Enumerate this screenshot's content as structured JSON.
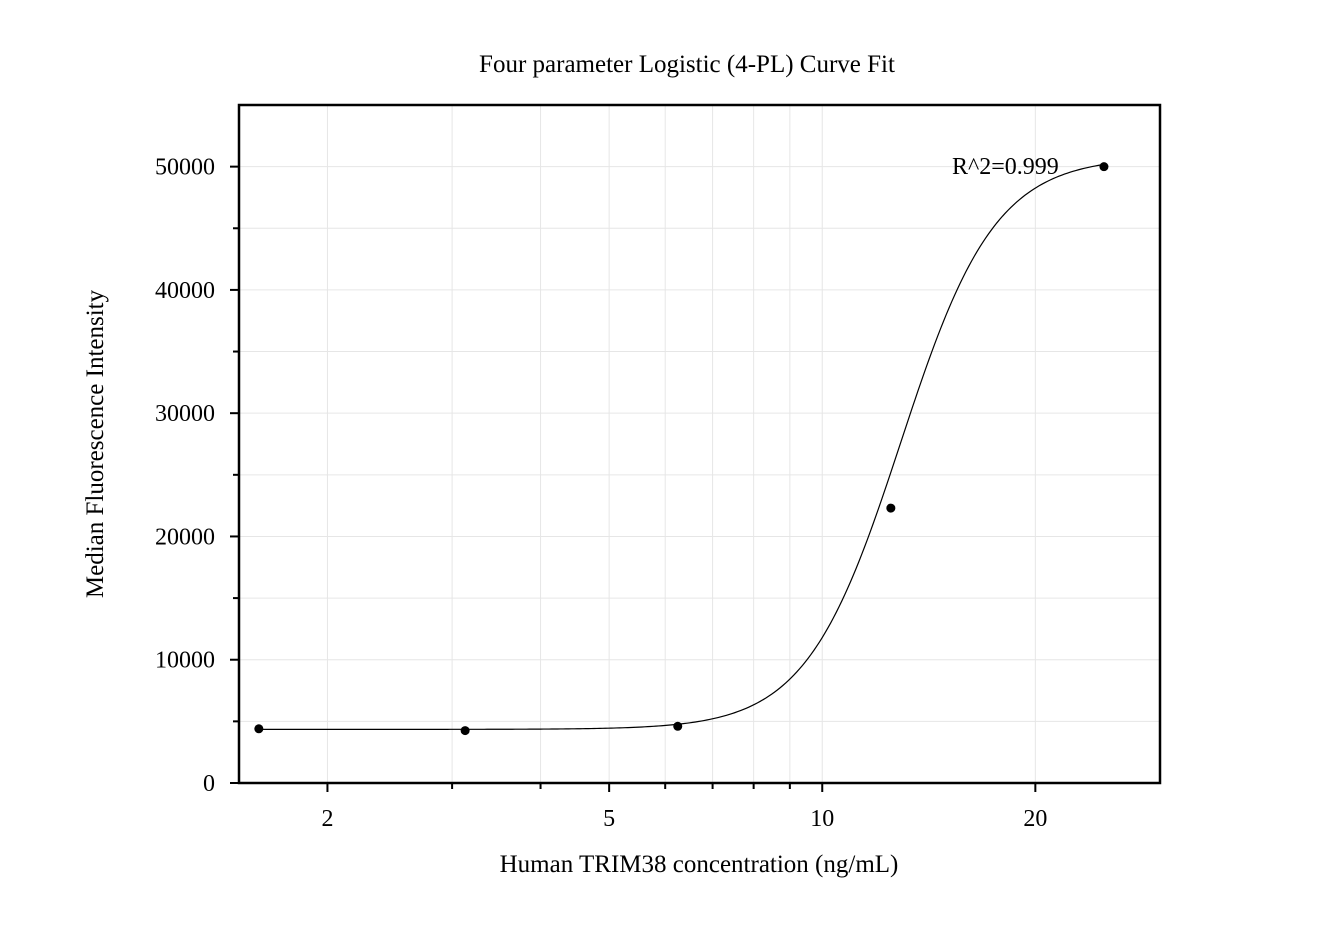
{
  "chart_data": {
    "type": "scatter",
    "title": "Four parameter Logistic (4-PL) Curve Fit",
    "xlabel": "Human TRIM38 concentration (ng/mL)",
    "ylabel": "Median Fluorescence Intensity",
    "x_scale": "log",
    "xlim": [
      1.5,
      30
    ],
    "ylim": [
      0,
      55000
    ],
    "x_ticks": [
      2,
      5,
      10,
      20
    ],
    "x_tick_labels": [
      "2",
      "5",
      "10",
      "20"
    ],
    "y_ticks": [
      0,
      10000,
      20000,
      30000,
      40000,
      50000
    ],
    "y_tick_labels": [
      "0",
      "10000",
      "20000",
      "30000",
      "40000",
      "50000"
    ],
    "grid": true,
    "series": [
      {
        "points": [
          {
            "x": 1.6,
            "y": 4400
          },
          {
            "x": 3.13,
            "y": 4250
          },
          {
            "x": 6.25,
            "y": 4600
          },
          {
            "x": 12.5,
            "y": 22300
          },
          {
            "x": 25,
            "y": 50000
          }
        ]
      }
    ],
    "fit_curve": {
      "model": "4PL",
      "min": 4350,
      "max": 50800,
      "ec50": 12.9,
      "hill": 6.5
    },
    "annotation": "R^2=0.999",
    "colors": {
      "points": "#000000",
      "curve": "#000000",
      "grid": "#e6e6e6",
      "frame": "#000000"
    }
  }
}
